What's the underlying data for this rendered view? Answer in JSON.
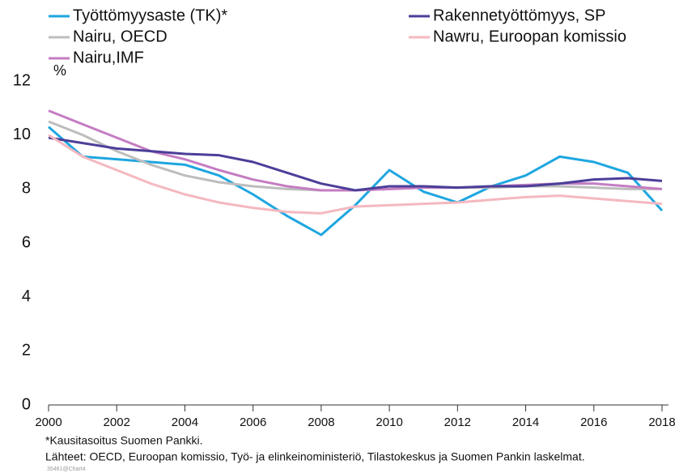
{
  "chart_data": {
    "type": "line",
    "ylabel": "%",
    "x": [
      2000,
      2001,
      2002,
      2003,
      2004,
      2005,
      2006,
      2007,
      2008,
      2009,
      2010,
      2011,
      2012,
      2013,
      2014,
      2015,
      2016,
      2017,
      2018
    ],
    "series": [
      {
        "name": "Työttömyysaste (TK)*",
        "color": "#1ea6e0",
        "values": [
          10.3,
          9.2,
          9.1,
          9.0,
          8.9,
          8.5,
          7.8,
          7.0,
          6.3,
          7.4,
          8.7,
          7.9,
          7.5,
          8.1,
          8.5,
          9.2,
          9.0,
          8.6,
          7.2
        ]
      },
      {
        "name": "Nairu, OECD",
        "color": "#bdbdbd",
        "values": [
          10.5,
          10.0,
          9.4,
          8.9,
          8.5,
          8.25,
          8.1,
          8.0,
          7.95,
          7.95,
          8.0,
          8.05,
          8.05,
          8.05,
          8.1,
          8.1,
          8.05,
          8.0,
          8.0
        ]
      },
      {
        "name": "Nairu,IMF",
        "color": "#c47dc2",
        "values": [
          10.9,
          10.4,
          9.9,
          9.4,
          9.1,
          8.7,
          8.35,
          8.1,
          7.95,
          7.95,
          8.0,
          8.05,
          8.05,
          8.1,
          8.15,
          8.2,
          8.2,
          8.1,
          8.0
        ]
      },
      {
        "name": "Rakennetyöttömyys, SP",
        "color": "#4b3f99",
        "values": [
          9.9,
          9.7,
          9.5,
          9.4,
          9.3,
          9.25,
          9.0,
          8.6,
          8.2,
          7.95,
          8.1,
          8.1,
          8.05,
          8.1,
          8.1,
          8.2,
          8.35,
          8.4,
          8.3
        ]
      },
      {
        "name": "Nawru, Euroopan komissio",
        "color": "#f4b8c0",
        "values": [
          10.0,
          9.2,
          8.7,
          8.2,
          7.8,
          7.5,
          7.3,
          7.15,
          7.1,
          7.35,
          7.4,
          7.45,
          7.5,
          7.6,
          7.7,
          7.75,
          7.65,
          7.55,
          7.45
        ]
      }
    ],
    "xlim": [
      2000,
      2018
    ],
    "xticks": [
      2000,
      2002,
      2004,
      2006,
      2008,
      2010,
      2012,
      2014,
      2016,
      2018
    ],
    "ylim": [
      0,
      12
    ],
    "yticks": [
      0,
      2,
      4,
      6,
      8,
      10,
      12
    ],
    "grid": false,
    "notes": [
      "*Kausitasoitus Suomen Pankki.",
      "Lähteet: OECD, Euroopan komissio, Työ- ja elinkeinoministeriö, Tilastokeskus ja Suomen Pankin laskelmat.",
      "35461@Chart4"
    ]
  }
}
